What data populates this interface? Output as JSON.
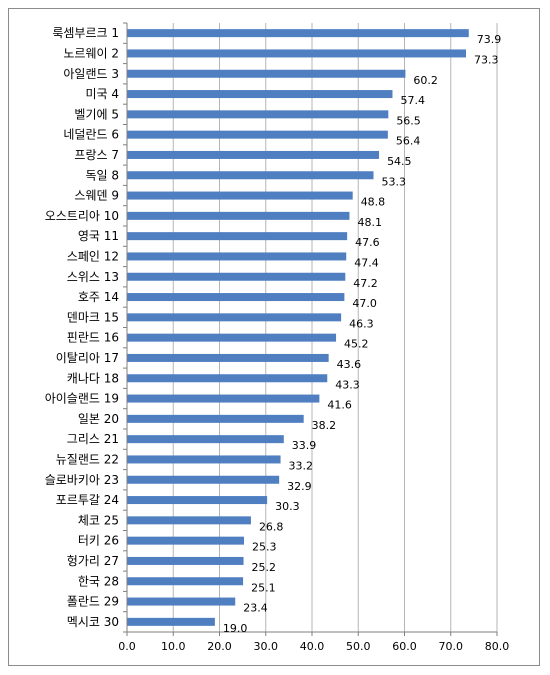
{
  "chart_data": {
    "type": "bar",
    "orientation": "horizontal",
    "title": "",
    "xlabel": "",
    "ylabel": "",
    "xlim": [
      0,
      80
    ],
    "x_ticks": [
      "0.0",
      "10.0",
      "20.0",
      "30.0",
      "40.0",
      "50.0",
      "60.0",
      "70.0",
      "80.0"
    ],
    "grid": true,
    "bar_color": "#4f7fc0",
    "categories": [
      "룩셈부르크 1",
      "노르웨이 2",
      "아일랜드 3",
      "미국 4",
      "벨기에 5",
      "네덜란드 6",
      "프랑스 7",
      "독일 8",
      "스웨덴 9",
      "오스트리아 10",
      "영국 11",
      "스페인 12",
      "스위스 13",
      "호주 14",
      "덴마크 15",
      "핀란드 16",
      "이탈리아 17",
      "캐나다 18",
      "아이슬랜드 19",
      "일본 20",
      "그리스 21",
      "뉴질랜드 22",
      "슬로바키아 23",
      "포르투갈 24",
      "체코 25",
      "터키 26",
      "헝가리 27",
      "한국 28",
      "폴란드 29",
      "멕시코 30"
    ],
    "values": [
      73.9,
      73.3,
      60.2,
      57.4,
      56.5,
      56.4,
      54.5,
      53.3,
      48.8,
      48.1,
      47.6,
      47.4,
      47.2,
      47.0,
      46.3,
      45.2,
      43.6,
      43.3,
      41.6,
      38.2,
      33.9,
      33.2,
      32.9,
      30.3,
      26.8,
      25.3,
      25.2,
      25.1,
      23.4,
      19.0
    ],
    "value_labels": [
      "73.9",
      "73.3",
      "60.2",
      "57.4",
      "56.5",
      "56.4",
      "54.5",
      "53.3",
      "48.8",
      "48.1",
      "47.6",
      "47.4",
      "47.2",
      "47.0",
      "46.3",
      "45.2",
      "43.6",
      "43.3",
      "41.6",
      "38.2",
      "33.9",
      "33.2",
      "32.9",
      "30.3",
      "26.8",
      "25.3",
      "25.2",
      "25.1",
      "23.4",
      "19.0"
    ]
  }
}
